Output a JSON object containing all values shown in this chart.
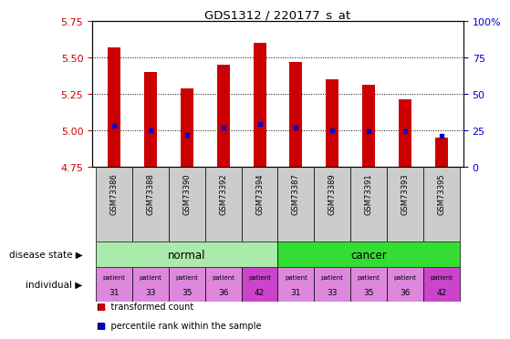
{
  "title": "GDS1312 / 220177_s_at",
  "samples": [
    "GSM73386",
    "GSM73388",
    "GSM73390",
    "GSM73392",
    "GSM73394",
    "GSM73387",
    "GSM73389",
    "GSM73391",
    "GSM73393",
    "GSM73395"
  ],
  "transformed_counts": [
    5.57,
    5.4,
    5.29,
    5.45,
    5.6,
    5.47,
    5.35,
    5.31,
    5.21,
    4.95
  ],
  "percentile_ranks": [
    28,
    25,
    22,
    27,
    29,
    27,
    25,
    24,
    24,
    21
  ],
  "ylim": [
    4.75,
    5.75
  ],
  "yticks": [
    4.75,
    5.0,
    5.25,
    5.5,
    5.75
  ],
  "percentile_ylim": [
    0,
    100
  ],
  "percentile_yticks": [
    0,
    25,
    50,
    75,
    100
  ],
  "bar_color": "#cc0000",
  "dot_color": "#0000cc",
  "bar_width": 0.35,
  "normal_color": "#aaeaaa",
  "cancer_color": "#33dd33",
  "indiv_colors": [
    "#dd88dd",
    "#dd88dd",
    "#dd88dd",
    "#dd88dd",
    "#cc44cc",
    "#dd88dd",
    "#dd88dd",
    "#dd88dd",
    "#dd88dd",
    "#cc44cc"
  ],
  "indiv_numbers": [
    "31",
    "33",
    "35",
    "36",
    "42",
    "31",
    "33",
    "35",
    "36",
    "42"
  ],
  "left_label_color": "#000000",
  "ytick_color": "#cc0000",
  "right_ytick_color": "#0000cc",
  "sample_box_color": "#cccccc",
  "legend_red_label": "transformed count",
  "legend_blue_label": "percentile rank within the sample"
}
